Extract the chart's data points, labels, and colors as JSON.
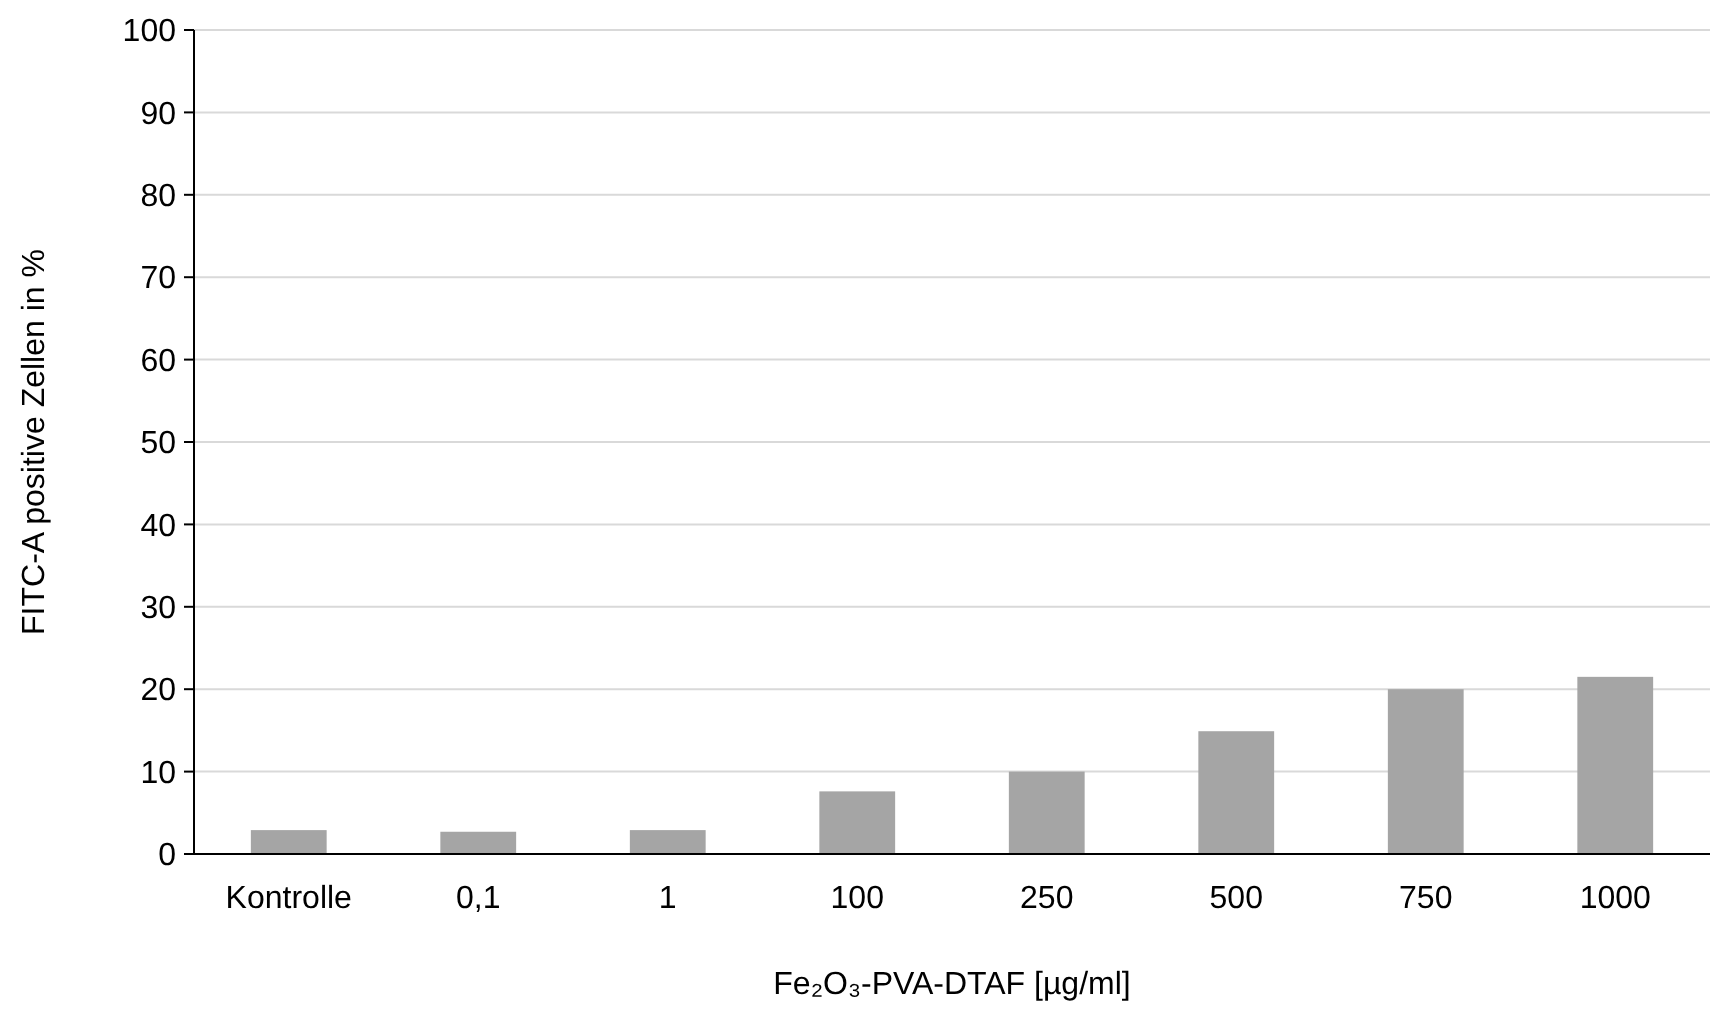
{
  "chart_data": {
    "type": "bar",
    "xlabel": "Fe₂O₃-PVA-DTAF [µg/ml]",
    "ylabel": "FITC-A positive Zellen in %",
    "categories": [
      "Kontrolle",
      "0,1",
      "1",
      "100",
      "250",
      "500",
      "750",
      "1000"
    ],
    "values": [
      2.9,
      2.7,
      2.9,
      7.6,
      10,
      14.9,
      20,
      21.5
    ],
    "color": "#a5a5a5",
    "ylim": [
      0,
      100
    ],
    "yticks": [
      0,
      10,
      20,
      30,
      40,
      50,
      60,
      70,
      80,
      90,
      100
    ],
    "grid": "y"
  }
}
